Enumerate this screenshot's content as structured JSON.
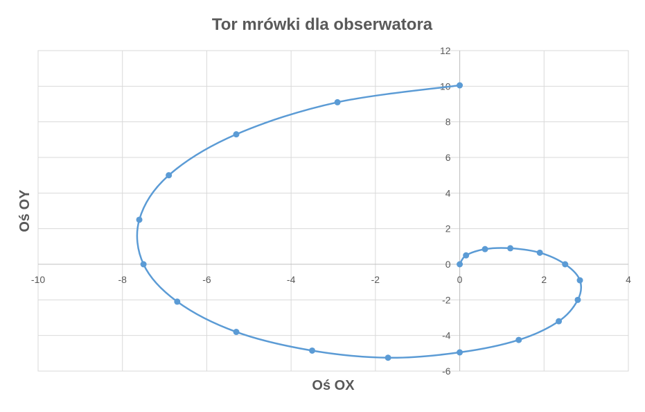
{
  "chart_data": {
    "type": "scatter",
    "title": "Tor mrówki dla obserwatora",
    "xlabel": "Oś OX",
    "ylabel": "Oś OY",
    "xlim": [
      -10,
      4
    ],
    "ylim": [
      -6,
      12
    ],
    "x_ticks": [
      "-10",
      "-8",
      "-6",
      "-4",
      "-2",
      "0",
      "2",
      "4"
    ],
    "y_ticks": [
      "-6",
      "-4",
      "-2",
      "0",
      "2",
      "4",
      "6",
      "8",
      "10",
      "12"
    ],
    "grid": true,
    "smooth": true,
    "color": "#5b9bd5",
    "legend": "none",
    "series": [
      {
        "x": [
          0,
          0.15,
          0.6,
          1.2,
          1.9,
          2.5,
          2.85,
          2.8,
          2.35,
          1.4,
          0,
          -1.7,
          -3.5,
          -5.3,
          -6.7,
          -7.5,
          -7.6,
          -6.9,
          -5.3,
          -2.9,
          0
        ],
        "y": [
          0,
          0.5,
          0.85,
          0.9,
          0.65,
          0,
          -0.9,
          -2.0,
          -3.2,
          -4.25,
          -4.95,
          -5.25,
          -4.85,
          -3.8,
          -2.1,
          0,
          2.5,
          5.0,
          7.3,
          9.1,
          10.05
        ]
      }
    ]
  }
}
